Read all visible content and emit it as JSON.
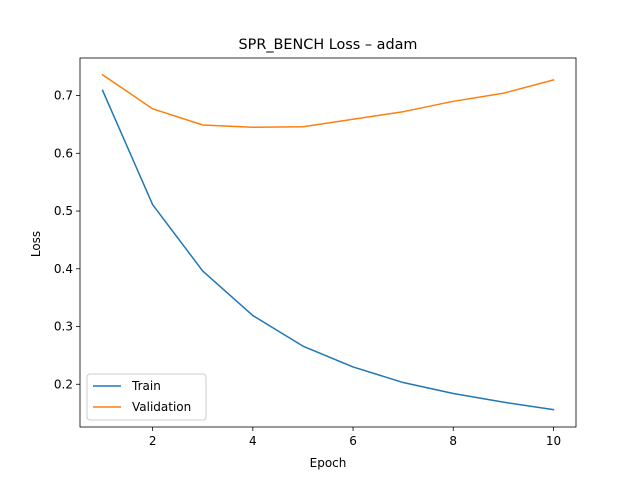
{
  "chart_data": {
    "type": "line",
    "title": "SPR_BENCH Loss – adam",
    "xlabel": "Epoch",
    "ylabel": "Loss",
    "x": [
      1,
      2,
      3,
      4,
      5,
      6,
      7,
      8,
      9,
      10
    ],
    "xlim": [
      0.55,
      10.45
    ],
    "ylim": [
      0.126,
      0.765
    ],
    "xticks": [
      2,
      4,
      6,
      8,
      10
    ],
    "yticks": [
      0.2,
      0.3,
      0.4,
      0.5,
      0.6,
      0.7
    ],
    "series": [
      {
        "name": "Train",
        "color": "#1f77b4",
        "values": [
          0.709,
          0.511,
          0.396,
          0.319,
          0.266,
          0.23,
          0.203,
          0.184,
          0.169,
          0.156
        ]
      },
      {
        "name": "Validation",
        "color": "#ff7f0e",
        "values": [
          0.736,
          0.677,
          0.649,
          0.645,
          0.646,
          0.659,
          0.672,
          0.69,
          0.704,
          0.727
        ]
      }
    ],
    "grid": false,
    "legend": "lower-left"
  }
}
